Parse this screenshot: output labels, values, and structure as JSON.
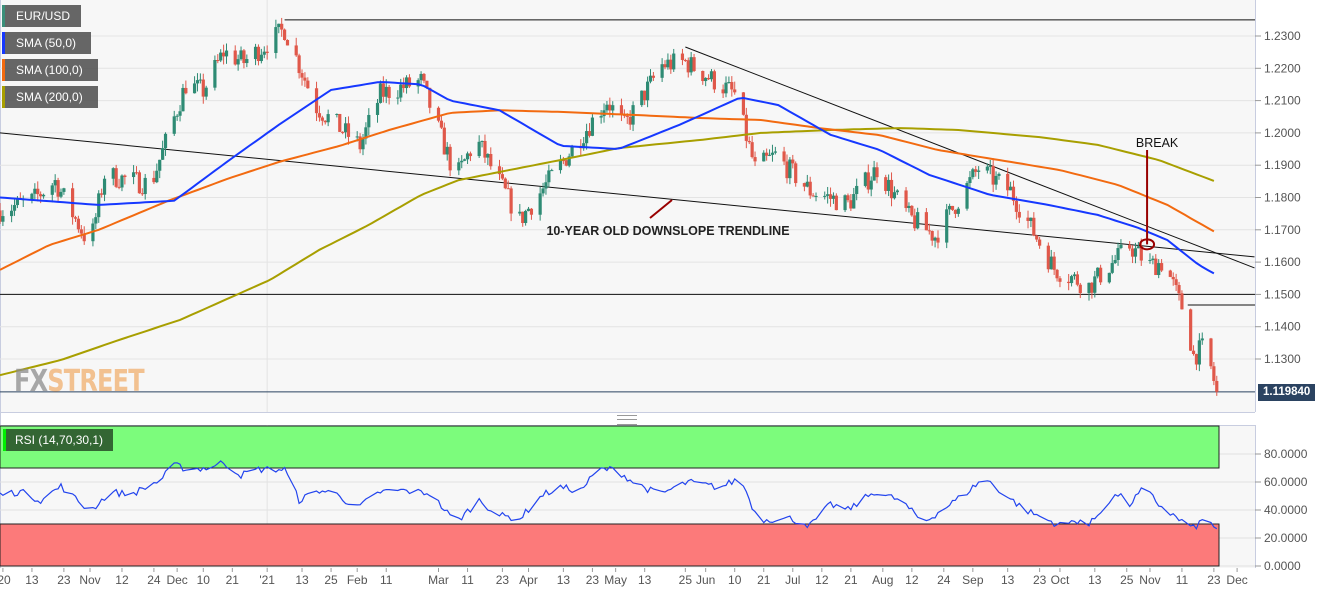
{
  "legend": {
    "symbol": "EUR/USD",
    "sma50": "SMA (50,0)",
    "sma100": "SMA (100,0)",
    "sma200": "SMA (200,0)",
    "rsi": "RSI (14,70,30,1)"
  },
  "logo": {
    "part1": "FX",
    "part2": "STREET"
  },
  "colors": {
    "up": "#2e8b74",
    "down": "#e0584a",
    "sma50": "#1638ff",
    "sma100": "#f26a10",
    "sma200": "#a89f00",
    "rsi": "#2244ee",
    "overbought": "#7cfc7c",
    "oversold": "#fc7a7a",
    "annotation": "#990000"
  },
  "chart_data": {
    "type": "candlestick",
    "symbol": "EUR/USD",
    "time_unit": "calendar days since 2020-10-01",
    "last_price": "1.119840",
    "price_axis": {
      "ylim": [
        1.115,
        1.2395
      ],
      "ticks": [
        "1.2300",
        "1.2200",
        "1.2100",
        "1.2000",
        "1.1900",
        "1.1800",
        "1.1700",
        "1.1600",
        "1.1500",
        "1.1400",
        "1.1300"
      ]
    },
    "rsi_axis": {
      "ylim": [
        0,
        100
      ],
      "ticks": [
        "80.0000",
        "60.0000",
        "40.0000",
        "20.0000",
        "0.0000"
      ],
      "overbought": 70,
      "oversold": 30
    },
    "x_ticks": [
      [
        "'20",
        1
      ],
      [
        "13",
        11
      ],
      [
        "23",
        22
      ],
      [
        "Nov",
        31
      ],
      [
        "12",
        42
      ],
      [
        "24",
        53
      ],
      [
        "Dec",
        61
      ],
      [
        "10",
        70
      ],
      [
        "21",
        80
      ],
      [
        "'21",
        92
      ],
      [
        "13",
        104
      ],
      [
        "25",
        114
      ],
      [
        "Feb",
        123
      ],
      [
        "11",
        133
      ],
      [
        "Mar",
        151
      ],
      [
        "11",
        161
      ],
      [
        "23",
        173
      ],
      [
        "Apr",
        182
      ],
      [
        "13",
        194
      ],
      [
        "23",
        204
      ],
      [
        "May",
        212
      ],
      [
        "13",
        222
      ],
      [
        "25",
        236
      ],
      [
        "Jun",
        243
      ],
      [
        "10",
        253
      ],
      [
        "21",
        263
      ],
      [
        "Jul",
        273
      ],
      [
        "12",
        283
      ],
      [
        "21",
        293
      ],
      [
        "Aug",
        304
      ],
      [
        "12",
        314
      ],
      [
        "24",
        325
      ],
      [
        "Sep",
        335
      ],
      [
        "13",
        347
      ],
      [
        "23",
        358
      ],
      [
        "Oct",
        365
      ],
      [
        "13",
        377
      ],
      [
        "25",
        388
      ],
      [
        "Nov",
        396
      ],
      [
        "11",
        407
      ],
      [
        "23",
        418
      ],
      [
        "Dec",
        426
      ]
    ],
    "close_path": [
      [
        0,
        1.176
      ],
      [
        11,
        1.179
      ],
      [
        19,
        1.185
      ],
      [
        31,
        1.165
      ],
      [
        36,
        1.187
      ],
      [
        52,
        1.184
      ],
      [
        64,
        1.215
      ],
      [
        70,
        1.213
      ],
      [
        77,
        1.225
      ],
      [
        84,
        1.222
      ],
      [
        98,
        1.232
      ],
      [
        109,
        1.208
      ],
      [
        124,
        1.196
      ],
      [
        131,
        1.212
      ],
      [
        145,
        1.216
      ],
      [
        157,
        1.186
      ],
      [
        164,
        1.198
      ],
      [
        179,
        1.173
      ],
      [
        193,
        1.19
      ],
      [
        209,
        1.21
      ],
      [
        215,
        1.202
      ],
      [
        228,
        1.221
      ],
      [
        236,
        1.222
      ],
      [
        253,
        1.212
      ],
      [
        260,
        1.189
      ],
      [
        267,
        1.193
      ],
      [
        279,
        1.182
      ],
      [
        292,
        1.178
      ],
      [
        302,
        1.189
      ],
      [
        313,
        1.174
      ],
      [
        322,
        1.168
      ],
      [
        337,
        1.189
      ],
      [
        348,
        1.182
      ],
      [
        363,
        1.158
      ],
      [
        375,
        1.1525
      ],
      [
        389,
        1.165
      ],
      [
        396,
        1.159
      ],
      [
        401,
        1.16
      ],
      [
        406,
        1.148
      ],
      [
        408,
        1.1445
      ],
      [
        411,
        1.131
      ],
      [
        415,
        1.134
      ],
      [
        419,
        1.11984
      ]
    ],
    "sma50": [
      [
        0,
        1.18
      ],
      [
        34,
        1.1777
      ],
      [
        60,
        1.179
      ],
      [
        79,
        1.1916
      ],
      [
        96,
        1.2025
      ],
      [
        114,
        1.2133
      ],
      [
        131,
        1.2158
      ],
      [
        145,
        1.215
      ],
      [
        155,
        1.21
      ],
      [
        172,
        1.207
      ],
      [
        193,
        1.196
      ],
      [
        213,
        1.195
      ],
      [
        234,
        1.2025
      ],
      [
        255,
        1.211
      ],
      [
        268,
        1.2086
      ],
      [
        286,
        1.1994
      ],
      [
        303,
        1.1947
      ],
      [
        320,
        1.187
      ],
      [
        341,
        1.1808
      ],
      [
        361,
        1.1777
      ],
      [
        378,
        1.1746
      ],
      [
        392,
        1.1706
      ],
      [
        402,
        1.1668
      ],
      [
        413,
        1.159
      ],
      [
        419,
        1.156
      ]
    ],
    "sma100": [
      [
        0,
        1.1576
      ],
      [
        17,
        1.1653
      ],
      [
        34,
        1.17
      ],
      [
        58,
        1.179
      ],
      [
        79,
        1.186
      ],
      [
        96,
        1.191
      ],
      [
        117,
        1.196
      ],
      [
        134,
        1.2009
      ],
      [
        155,
        1.2062
      ],
      [
        172,
        1.207
      ],
      [
        193,
        1.2065
      ],
      [
        220,
        1.2055
      ],
      [
        241,
        1.2046
      ],
      [
        262,
        1.204
      ],
      [
        282,
        1.2015
      ],
      [
        303,
        1.1993
      ],
      [
        323,
        1.1947
      ],
      [
        344,
        1.1916
      ],
      [
        365,
        1.1885
      ],
      [
        385,
        1.1839
      ],
      [
        402,
        1.1777
      ],
      [
        419,
        1.169
      ]
    ],
    "sma200": [
      [
        0,
        1.125
      ],
      [
        21,
        1.1297
      ],
      [
        41,
        1.1359
      ],
      [
        62,
        1.1421
      ],
      [
        79,
        1.1489
      ],
      [
        93,
        1.1545
      ],
      [
        110,
        1.1638
      ],
      [
        127,
        1.1715
      ],
      [
        145,
        1.1808
      ],
      [
        158,
        1.1854
      ],
      [
        172,
        1.1879
      ],
      [
        193,
        1.1916
      ],
      [
        213,
        1.1953
      ],
      [
        241,
        1.1978
      ],
      [
        262,
        1.2
      ],
      [
        286,
        1.2009
      ],
      [
        310,
        1.2015
      ],
      [
        330,
        1.2009
      ],
      [
        358,
        1.1987
      ],
      [
        378,
        1.1963
      ],
      [
        399,
        1.1916
      ],
      [
        419,
        1.1848
      ]
    ],
    "rsi": [
      [
        0,
        51
      ],
      [
        7,
        53
      ],
      [
        14,
        47
      ],
      [
        21,
        57
      ],
      [
        31,
        39
      ],
      [
        38,
        53
      ],
      [
        45,
        51
      ],
      [
        55,
        61
      ],
      [
        60,
        72
      ],
      [
        65,
        69
      ],
      [
        71,
        70
      ],
      [
        77,
        74
      ],
      [
        83,
        65
      ],
      [
        89,
        69
      ],
      [
        98,
        69
      ],
      [
        103,
        47
      ],
      [
        110,
        54
      ],
      [
        117,
        51
      ],
      [
        122,
        40
      ],
      [
        131,
        53
      ],
      [
        138,
        54
      ],
      [
        148,
        52
      ],
      [
        157,
        31
      ],
      [
        165,
        47
      ],
      [
        172,
        36
      ],
      [
        179,
        34
      ],
      [
        187,
        51
      ],
      [
        193,
        56
      ],
      [
        200,
        54
      ],
      [
        206,
        69
      ],
      [
        212,
        69
      ],
      [
        218,
        60
      ],
      [
        227,
        51
      ],
      [
        237,
        60
      ],
      [
        248,
        56
      ],
      [
        255,
        63
      ],
      [
        261,
        33
      ],
      [
        272,
        34
      ],
      [
        279,
        29
      ],
      [
        286,
        44
      ],
      [
        292,
        40
      ],
      [
        301,
        53
      ],
      [
        310,
        47
      ],
      [
        318,
        31
      ],
      [
        325,
        41
      ],
      [
        332,
        51
      ],
      [
        339,
        63
      ],
      [
        346,
        51
      ],
      [
        353,
        40
      ],
      [
        365,
        29
      ],
      [
        372,
        33
      ],
      [
        375,
        29
      ],
      [
        382,
        47
      ],
      [
        385,
        51
      ],
      [
        389,
        44
      ],
      [
        394,
        56
      ],
      [
        399,
        44
      ],
      [
        406,
        33
      ],
      [
        411,
        27
      ],
      [
        415,
        34
      ],
      [
        419,
        27
      ]
    ],
    "levels": {
      "resistance_top": 1.235,
      "support": 1.15,
      "short_level": 1.1467
    },
    "trendlines": [
      {
        "name": "10-year downslope",
        "from": [
          0,
          1.2
        ],
        "to": [
          432,
          1.1616
        ]
      },
      {
        "name": "downtrend from May high",
        "from": [
          236,
          1.2266
        ],
        "to": [
          432,
          1.1582
        ]
      }
    ],
    "annotations": {
      "trendline_label": "10-YEAR OLD DOWNSLOPE TRENDLINE",
      "break_label": "BREAK",
      "break_point": [
        395,
        1.1655
      ]
    }
  }
}
